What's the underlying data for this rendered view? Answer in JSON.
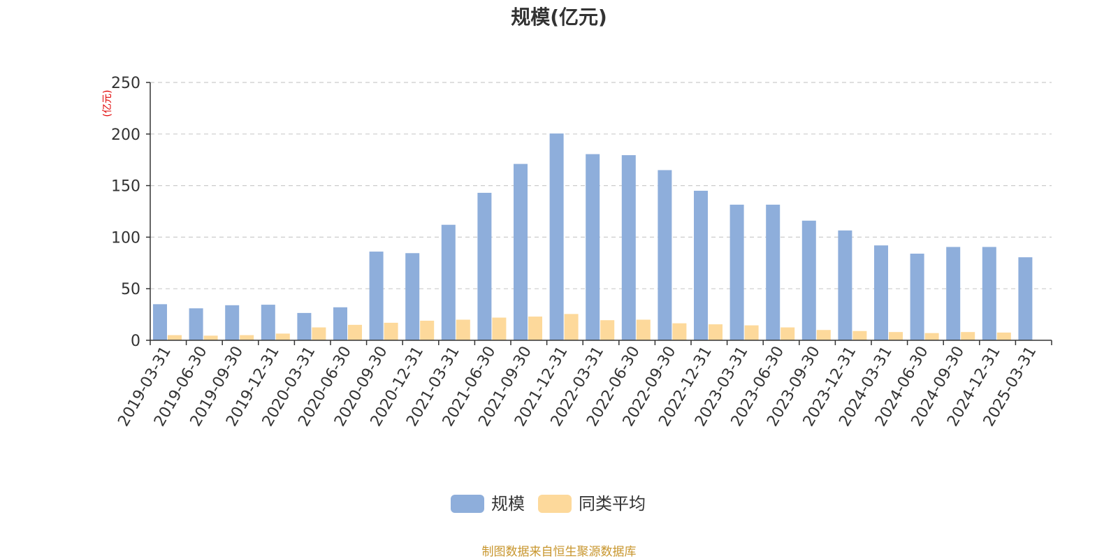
{
  "chart_data": {
    "type": "bar",
    "title": "规模(亿元)",
    "ylabel": "(亿元)",
    "ylim": [
      0,
      250
    ],
    "yticks": [
      0,
      50,
      100,
      150,
      200,
      250
    ],
    "grid": true,
    "legend_position": "bottom",
    "categories": [
      "2019-03-31",
      "2019-06-30",
      "2019-09-30",
      "2019-12-31",
      "2020-03-31",
      "2020-06-30",
      "2020-09-30",
      "2020-12-31",
      "2021-03-31",
      "2021-06-30",
      "2021-09-30",
      "2021-12-31",
      "2022-03-31",
      "2022-06-30",
      "2022-09-30",
      "2022-12-31",
      "2023-03-31",
      "2023-06-30",
      "2023-09-30",
      "2023-12-31",
      "2024-03-31",
      "2024-06-30",
      "2024-09-30",
      "2024-12-31",
      "2025-03-31"
    ],
    "series": [
      {
        "name": "规模",
        "color": "#8eaedb",
        "values": [
          35,
          31,
          34,
          34.5,
          26.5,
          32,
          86,
          84.5,
          112,
          143,
          171,
          200.5,
          180.5,
          179.5,
          165,
          145,
          131.5,
          131.5,
          116,
          106.5,
          92,
          84,
          90.5,
          90.5,
          80.5
        ]
      },
      {
        "name": "同类平均",
        "color": "#fdd99b",
        "values": [
          5,
          4.5,
          5,
          6.5,
          12.5,
          15,
          17,
          19,
          20,
          22,
          23,
          25.5,
          19.5,
          20,
          16.5,
          15.5,
          14.5,
          12.5,
          10,
          9,
          8,
          7,
          8,
          7.5,
          null
        ]
      }
    ]
  },
  "source_note": "制图数据来自恒生聚源数据库"
}
